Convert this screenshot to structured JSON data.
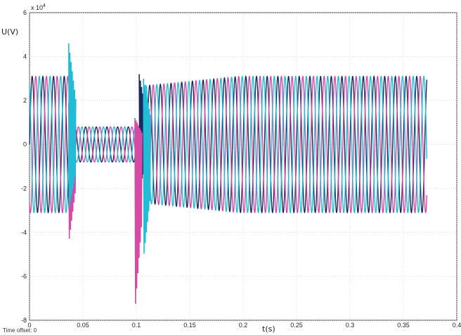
{
  "chart_data": {
    "type": "line",
    "xlabel": "t(s)",
    "ylabel": "U(V)",
    "y_exponent_label": "x 10",
    "y_exponent_power": "4",
    "xlim": [
      0,
      0.4
    ],
    "ylim": [
      -80000,
      60000
    ],
    "x_ticks": [
      0,
      0.05,
      0.1,
      0.15,
      0.2,
      0.25,
      0.3,
      0.35,
      0.4
    ],
    "x_tick_labels": [
      "0",
      "0.05",
      "0.1",
      "0.15",
      "0.2",
      "0.25",
      "0.3",
      "0.35",
      "0.4"
    ],
    "y_ticks": [
      -80000,
      -60000,
      -40000,
      -20000,
      0,
      20000,
      40000,
      60000
    ],
    "y_tick_labels": [
      "-8",
      "-6",
      "-4",
      "-2",
      "0",
      "2",
      "4",
      "6"
    ],
    "grid": true,
    "t_end": 0.372,
    "frequency_hz": 100,
    "amplitude_steady": 31000,
    "sag_interval": [
      0.04,
      0.107
    ],
    "amplitude_during_sag": 8000,
    "series": [
      {
        "color": "#1b2a5e",
        "phase_deg": 0
      },
      {
        "color": "#d64aa6",
        "phase_deg": 120
      },
      {
        "color": "#22bcd6",
        "phase_deg": 240
      }
    ],
    "transients": [
      {
        "series": 0,
        "t": 0.106,
        "peak": 32000,
        "trough": -20000
      },
      {
        "series": 1,
        "t": 0.04,
        "peak": 19000,
        "trough": -45000
      },
      {
        "series": 1,
        "t": 0.102,
        "peak": 12000,
        "trough": -76000
      },
      {
        "series": 2,
        "t": 0.04,
        "peak": 46000,
        "trough": -30000
      },
      {
        "series": 2,
        "t": 0.11,
        "peak": 30000,
        "trough": -52000
      }
    ]
  },
  "footer": {
    "text": "Time offset: 0"
  }
}
